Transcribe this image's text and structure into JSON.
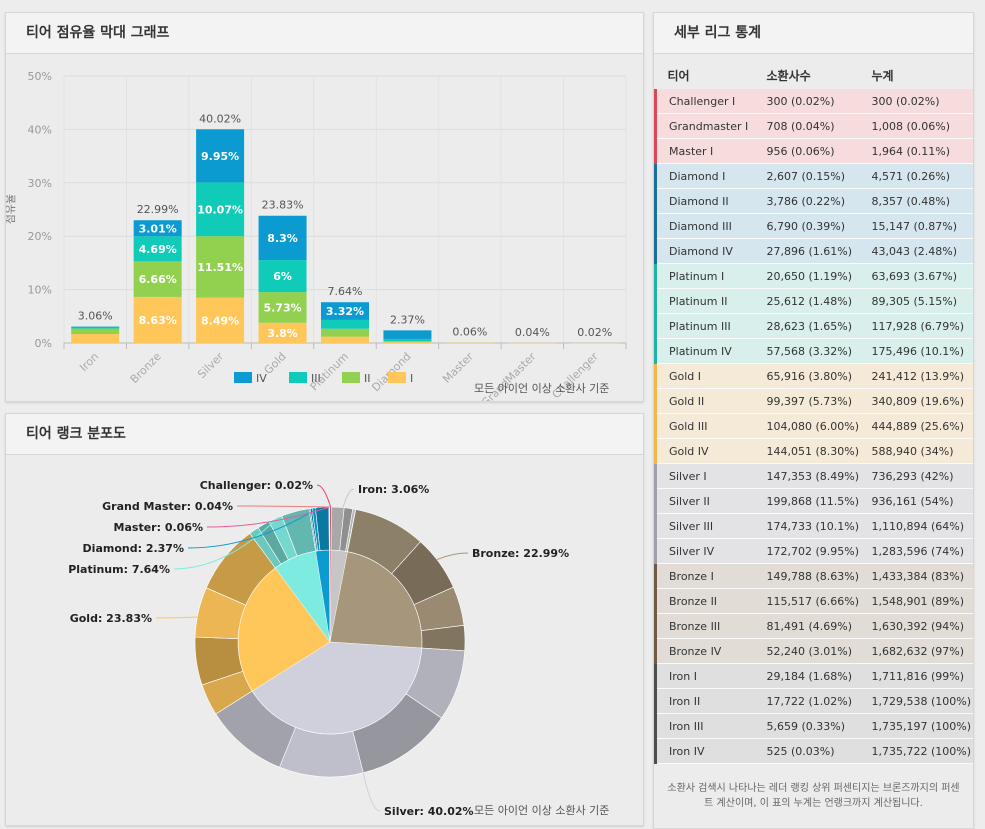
{
  "bar_panel": {
    "title": "티어 점유율 막대 그래프",
    "footnote": "모든 아이언 이상 소환사 기준"
  },
  "pie_panel": {
    "title": "티어 랭크 분포도",
    "footnote": "모든 아이언 이상 소환사 기준"
  },
  "stats_panel": {
    "title": "세부 리그 통계",
    "columns": [
      "티어",
      "소환사수",
      "누계"
    ],
    "rows": [
      {
        "tier": "Challenger I",
        "count": "300 (0.02%)",
        "cum": "300 (0.02%)",
        "group": "challenger"
      },
      {
        "tier": "Grandmaster I",
        "count": "708 (0.04%)",
        "cum": "1,008 (0.06%)",
        "group": "challenger"
      },
      {
        "tier": "Master I",
        "count": "956 (0.06%)",
        "cum": "1,964 (0.11%)",
        "group": "challenger"
      },
      {
        "tier": "Diamond I",
        "count": "2,607 (0.15%)",
        "cum": "4,571 (0.26%)",
        "group": "diamond"
      },
      {
        "tier": "Diamond II",
        "count": "3,786 (0.22%)",
        "cum": "8,357 (0.48%)",
        "group": "diamond"
      },
      {
        "tier": "Diamond III",
        "count": "6,790 (0.39%)",
        "cum": "15,147 (0.87%)",
        "group": "diamond"
      },
      {
        "tier": "Diamond IV",
        "count": "27,896 (1.61%)",
        "cum": "43,043 (2.48%)",
        "group": "diamond"
      },
      {
        "tier": "Platinum I",
        "count": "20,650 (1.19%)",
        "cum": "63,693 (3.67%)",
        "group": "platinum"
      },
      {
        "tier": "Platinum II",
        "count": "25,612 (1.48%)",
        "cum": "89,305 (5.15%)",
        "group": "platinum"
      },
      {
        "tier": "Platinum III",
        "count": "28,623 (1.65%)",
        "cum": "117,928 (6.79%)",
        "group": "platinum"
      },
      {
        "tier": "Platinum IV",
        "count": "57,568 (3.32%)",
        "cum": "175,496 (10.1%)",
        "group": "platinum"
      },
      {
        "tier": "Gold I",
        "count": "65,916 (3.80%)",
        "cum": "241,412 (13.9%)",
        "group": "gold"
      },
      {
        "tier": "Gold II",
        "count": "99,397 (5.73%)",
        "cum": "340,809 (19.6%)",
        "group": "gold"
      },
      {
        "tier": "Gold III",
        "count": "104,080 (6.00%)",
        "cum": "444,889 (25.6%)",
        "group": "gold"
      },
      {
        "tier": "Gold IV",
        "count": "144,051 (8.30%)",
        "cum": "588,940 (34%)",
        "group": "gold"
      },
      {
        "tier": "Silver I",
        "count": "147,353 (8.49%)",
        "cum": "736,293 (42%)",
        "group": "silver"
      },
      {
        "tier": "Silver II",
        "count": "199,868 (11.5%)",
        "cum": "936,161 (54%)",
        "group": "silver"
      },
      {
        "tier": "Silver III",
        "count": "174,733 (10.1%)",
        "cum": "1,110,894 (64%)",
        "group": "silver"
      },
      {
        "tier": "Silver IV",
        "count": "172,702 (9.95%)",
        "cum": "1,283,596 (74%)",
        "group": "silver"
      },
      {
        "tier": "Bronze I",
        "count": "149,788 (8.63%)",
        "cum": "1,433,384 (83%)",
        "group": "bronze"
      },
      {
        "tier": "Bronze II",
        "count": "115,517 (6.66%)",
        "cum": "1,548,901 (89%)",
        "group": "bronze"
      },
      {
        "tier": "Bronze III",
        "count": "81,491 (4.69%)",
        "cum": "1,630,392 (94%)",
        "group": "bronze"
      },
      {
        "tier": "Bronze IV",
        "count": "52,240 (3.01%)",
        "cum": "1,682,632 (97%)",
        "group": "bronze"
      },
      {
        "tier": "Iron I",
        "count": "29,184 (1.68%)",
        "cum": "1,711,816 (99%)",
        "group": "iron"
      },
      {
        "tier": "Iron II",
        "count": "17,722 (1.02%)",
        "cum": "1,729,538 (100%)",
        "group": "iron"
      },
      {
        "tier": "Iron III",
        "count": "5,659 (0.33%)",
        "cum": "1,735,197 (100%)",
        "group": "iron"
      },
      {
        "tier": "Iron IV",
        "count": "525 (0.03%)",
        "cum": "1,735,722 (100%)",
        "group": "iron"
      }
    ],
    "footnote": "소환사 검색시 나타나는 레더 랭킹 상위 퍼센티지는 브론즈까지의 퍼센트 계산이며, 이 표의 누계는 언랭크까지 계산됩니다."
  },
  "group_colors": {
    "challenger": {
      "bg": "#f6dcdc",
      "bar": "#d9475a"
    },
    "diamond": {
      "bg": "#d6e6ee",
      "bar": "#1d6f99"
    },
    "platinum": {
      "bg": "#d8efec",
      "bar": "#1fb3a3"
    },
    "gold": {
      "bg": "#f5ead7",
      "bar": "#f0b84c"
    },
    "silver": {
      "bg": "#e3e3e6",
      "bar": "#9fa0aa"
    },
    "bronze": {
      "bg": "#e1ddd6",
      "bar": "#6e5a45"
    },
    "iron": {
      "bg": "#dfdfdf",
      "bar": "#4d4d4d"
    }
  },
  "chart_data": [
    {
      "type": "bar",
      "title": "티어 점유율 막대 그래프",
      "ylabel": "점유율",
      "ylim": [
        0,
        50
      ],
      "yticks": [
        "0%",
        "10%",
        "20%",
        "30%",
        "40%",
        "50%"
      ],
      "categories": [
        "Iron",
        "Bronze",
        "Silver",
        "Gold",
        "Platinum",
        "Diamond",
        "Master",
        "GrandMaster",
        "Challenger"
      ],
      "series": [
        {
          "name": "I",
          "color": "#ffc65a",
          "values": [
            1.68,
            8.63,
            8.49,
            3.8,
            1.19,
            0.15,
            0.06,
            0.04,
            0.02
          ],
          "labels": [
            "",
            "8.63%",
            "8.49%",
            "3.8%",
            "",
            "",
            "",
            "",
            ""
          ]
        },
        {
          "name": "II",
          "color": "#92d14f",
          "values": [
            1.02,
            6.66,
            11.51,
            5.73,
            1.48,
            0.22,
            0,
            0,
            0
          ],
          "labels": [
            "",
            "6.66%",
            "11.51%",
            "5.73%",
            "",
            "",
            "",
            "",
            ""
          ]
        },
        {
          "name": "III",
          "color": "#10cbb8",
          "values": [
            0.33,
            4.69,
            10.07,
            6.0,
            1.65,
            0.39,
            0,
            0,
            0
          ],
          "labels": [
            "",
            "4.69%",
            "10.07%",
            "6%",
            "",
            "",
            "",
            "",
            ""
          ]
        },
        {
          "name": "IV",
          "color": "#0b9bd0",
          "values": [
            0.03,
            3.01,
            9.95,
            8.3,
            3.32,
            1.61,
            0,
            0,
            0
          ],
          "labels": [
            "",
            "3.01%",
            "9.95%",
            "8.3%",
            "3.32%",
            "",
            "",
            "",
            ""
          ]
        }
      ],
      "totals": [
        "3.06%",
        "22.99%",
        "40.02%",
        "23.83%",
        "7.64%",
        "2.37%",
        "0.06%",
        "0.04%",
        "0.02%"
      ],
      "total_values": [
        3.06,
        22.99,
        40.02,
        23.83,
        7.64,
        2.37,
        0.06,
        0.04,
        0.02
      ],
      "legend": [
        "IV",
        "III",
        "II",
        "I"
      ]
    },
    {
      "type": "pie",
      "title": "티어 랭크 분포도",
      "slices": [
        {
          "name": "Iron",
          "value": 3.06,
          "label": "Iron: 3.06%",
          "color": "#c6c6c6",
          "sub": [
            1.68,
            1.02,
            0.33,
            0.03
          ]
        },
        {
          "name": "Bronze",
          "value": 22.99,
          "label": "Bronze: 22.99%",
          "color": "#a6967b",
          "sub": [
            8.63,
            6.66,
            4.69,
            3.01
          ]
        },
        {
          "name": "Silver",
          "value": 40.02,
          "label": "Silver: 40.02%",
          "color": "#cfd0dc",
          "sub": [
            8.49,
            11.51,
            10.07,
            9.95
          ]
        },
        {
          "name": "Gold",
          "value": 23.83,
          "label": "Gold: 23.83%",
          "color": "#ffc65a",
          "sub": [
            3.8,
            5.73,
            6.0,
            8.3
          ]
        },
        {
          "name": "Platinum",
          "value": 7.64,
          "label": "Platinum: 7.64%",
          "color": "#7eebe0",
          "sub": [
            1.19,
            1.48,
            1.65,
            3.32
          ]
        },
        {
          "name": "Diamond",
          "value": 2.37,
          "label": "Diamond: 2.37%",
          "color": "#0b9bd0",
          "sub": [
            0.15,
            0.22,
            0.39,
            1.61
          ]
        },
        {
          "name": "Master",
          "value": 0.06,
          "label": "Master: 0.06%",
          "color": "#e85d9a",
          "sub": [
            0.06
          ]
        },
        {
          "name": "Grand Master",
          "value": 0.04,
          "label": "Grand Master: 0.04%",
          "color": "#f07b7b",
          "sub": [
            0.04
          ]
        },
        {
          "name": "Challenger",
          "value": 0.02,
          "label": "Challenger: 0.02%",
          "color": "#e9406b",
          "sub": [
            0.02
          ]
        }
      ]
    }
  ]
}
